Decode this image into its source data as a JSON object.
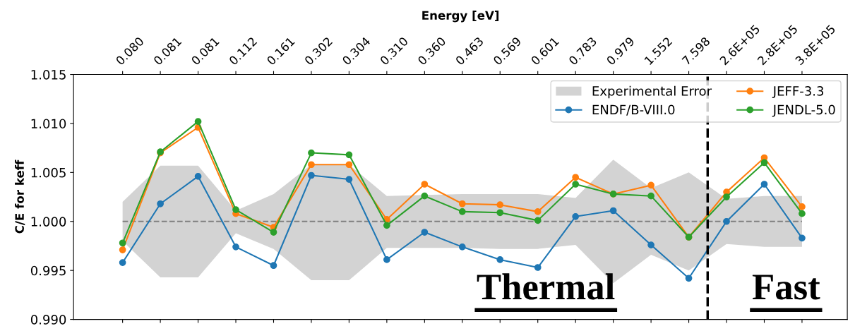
{
  "chart_data": {
    "type": "line",
    "xlabel": "Energy [eV]",
    "ylabel": "C/E for keff",
    "categories": [
      "0.080",
      "0.081",
      "0.081",
      "0.112",
      "0.161",
      "0.302",
      "0.304",
      "0.310",
      "0.360",
      "0.463",
      "0.569",
      "0.601",
      "0.783",
      "0.979",
      "1.552",
      "7.598",
      "2.6E+05",
      "2.8E+05",
      "3.8E+05"
    ],
    "series": [
      {
        "name": "Experimental Error",
        "type": "line",
        "line_style": "dashed",
        "marker": "none",
        "color": "#808080",
        "values": [
          1.0,
          1.0,
          1.0,
          1.0,
          1.0,
          1.0,
          1.0,
          1.0,
          1.0,
          1.0,
          1.0,
          1.0,
          1.0,
          1.0,
          1.0,
          1.0,
          1.0,
          1.0,
          1.0
        ],
        "lower": [
          0.998,
          0.9943,
          0.9943,
          0.9988,
          0.9972,
          0.994,
          0.994,
          0.9973,
          0.9973,
          0.9973,
          0.9972,
          0.9972,
          0.9976,
          0.9937,
          0.9966,
          0.995,
          0.9977,
          0.9974,
          0.9974
        ],
        "upper": [
          1.002,
          1.0057,
          1.0057,
          1.0011,
          1.0028,
          1.0058,
          1.0058,
          1.0026,
          1.0027,
          1.0028,
          1.0028,
          1.0028,
          1.0024,
          1.0063,
          1.0034,
          1.005,
          1.0023,
          1.0026,
          1.0026
        ]
      },
      {
        "name": "ENDF/B-VIII.0",
        "color": "#1f77b4",
        "values": [
          0.9958,
          1.0018,
          1.0046,
          0.9974,
          0.9955,
          1.0047,
          1.0043,
          0.9961,
          0.9989,
          0.9974,
          0.9961,
          0.9953,
          1.0005,
          1.0011,
          0.9976,
          0.9942,
          1.0,
          1.0038,
          0.9983
        ]
      },
      {
        "name": "JEFF-3.3",
        "color": "#ff7f0e",
        "values": [
          0.9971,
          1.007,
          1.0096,
          1.0008,
          0.9994,
          1.0058,
          1.0058,
          1.0002,
          1.0038,
          1.0018,
          1.0017,
          1.001,
          1.0045,
          1.0028,
          1.0037,
          0.9984,
          1.003,
          1.0065,
          1.0015
        ]
      },
      {
        "name": "JENDL-5.0",
        "color": "#2ca02c",
        "values": [
          0.9978,
          1.0071,
          1.0102,
          1.0012,
          0.9989,
          1.007,
          1.0068,
          0.9996,
          1.0026,
          1.001,
          1.0009,
          1.0001,
          1.0038,
          1.0028,
          1.0026,
          0.9984,
          1.0025,
          1.006,
          1.0008
        ]
      }
    ],
    "ylim": [
      0.99,
      1.015
    ],
    "yticks": [
      {
        "value": 0.99,
        "label": "0.990"
      },
      {
        "value": 0.995,
        "label": "0.995"
      },
      {
        "value": 1.0,
        "label": "1.000"
      },
      {
        "value": 1.005,
        "label": "1.005"
      },
      {
        "value": 1.01,
        "label": "1.010"
      },
      {
        "value": 1.015,
        "label": "1.015"
      }
    ],
    "annotations": [
      "Thermal",
      "Fast"
    ],
    "marker": "circle",
    "grid": false,
    "legend": "top right"
  }
}
